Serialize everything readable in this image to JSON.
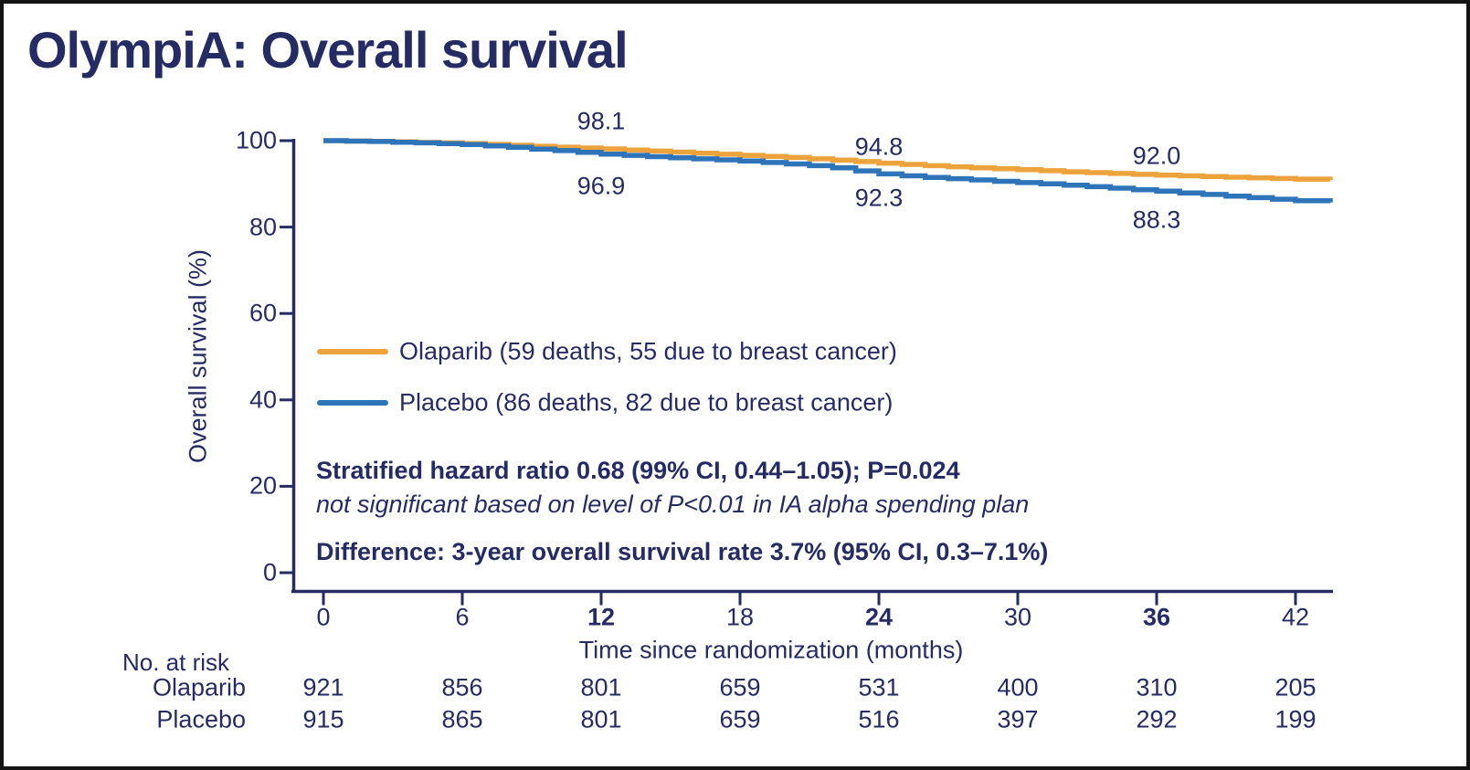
{
  "title": "OlympiA: Overall survival",
  "colors": {
    "navy": "#252B63",
    "olaparib_orange": "#EDA33C",
    "placebo_blue": "#2E74B9",
    "frame_border": "#141414",
    "background": "#FFFFFF"
  },
  "chart_data": {
    "type": "line",
    "subtype": "kaplan-meier-step",
    "title": "OlympiA: Overall survival",
    "xlabel": "Time since randomization (months)",
    "ylabel": "Overall survival (%)",
    "xlim": [
      0,
      43.5
    ],
    "ylim": [
      0,
      100
    ],
    "grid": false,
    "legend_position": "inside-middle-left",
    "x_ticks": [
      {
        "label": "0",
        "month": 0,
        "bold": false
      },
      {
        "label": "6",
        "month": 6,
        "bold": false
      },
      {
        "label": "12",
        "month": 12,
        "bold": true
      },
      {
        "label": "18",
        "month": 18,
        "bold": false
      },
      {
        "label": "24",
        "month": 24,
        "bold": true
      },
      {
        "label": "30",
        "month": 30,
        "bold": false
      },
      {
        "label": "36",
        "month": 36,
        "bold": true
      },
      {
        "label": "42",
        "month": 42,
        "bold": false
      }
    ],
    "y_ticks": [
      {
        "label": "100",
        "value": 100
      },
      {
        "label": "80",
        "value": 80
      },
      {
        "label": "60",
        "value": 60
      },
      {
        "label": "40",
        "value": 40
      },
      {
        "label": "20",
        "value": 20
      },
      {
        "label": "0",
        "value": 0
      }
    ],
    "series": [
      {
        "name": "Olaparib",
        "legend_label": "Olaparib (59 deaths, 55 due to breast cancer)",
        "color": "#EDA33C",
        "key_values": {
          "12": 98.1,
          "24": 94.8,
          "36": 92.0
        },
        "points": [
          [
            0,
            100
          ],
          [
            1,
            99.9
          ],
          [
            2,
            99.85
          ],
          [
            3,
            99.75
          ],
          [
            4,
            99.6
          ],
          [
            5,
            99.5
          ],
          [
            6,
            99.35
          ],
          [
            7,
            99.15
          ],
          [
            8,
            98.95
          ],
          [
            9,
            98.7
          ],
          [
            10,
            98.5
          ],
          [
            11,
            98.3
          ],
          [
            12,
            98.1
          ],
          [
            13,
            97.85
          ],
          [
            14,
            97.6
          ],
          [
            15,
            97.35
          ],
          [
            16,
            97.1
          ],
          [
            17,
            96.85
          ],
          [
            18,
            96.6
          ],
          [
            19,
            96.35
          ],
          [
            20,
            96.1
          ],
          [
            21,
            95.8
          ],
          [
            22,
            95.5
          ],
          [
            23,
            95.15
          ],
          [
            24,
            94.8
          ],
          [
            25,
            94.5
          ],
          [
            26,
            94.2
          ],
          [
            27,
            93.95
          ],
          [
            28,
            93.7
          ],
          [
            29,
            93.5
          ],
          [
            30,
            93.3
          ],
          [
            31,
            93.05
          ],
          [
            32,
            92.8
          ],
          [
            33,
            92.6
          ],
          [
            34,
            92.4
          ],
          [
            35,
            92.2
          ],
          [
            36,
            92.0
          ],
          [
            37,
            91.85
          ],
          [
            38,
            91.7
          ],
          [
            39,
            91.55
          ],
          [
            40,
            91.4
          ],
          [
            41,
            91.25
          ],
          [
            42,
            91.1
          ],
          [
            43.5,
            90.9
          ]
        ]
      },
      {
        "name": "Placebo",
        "legend_label": "Placebo (86 deaths, 82 due to breast cancer)",
        "color": "#2E74B9",
        "key_values": {
          "12": 96.9,
          "24": 92.3,
          "36": 88.3
        },
        "points": [
          [
            0,
            100
          ],
          [
            1,
            99.9
          ],
          [
            2,
            99.8
          ],
          [
            3,
            99.65
          ],
          [
            4,
            99.5
          ],
          [
            5,
            99.3
          ],
          [
            6,
            99.1
          ],
          [
            7,
            98.8
          ],
          [
            8,
            98.45
          ],
          [
            9,
            98.05
          ],
          [
            10,
            97.7
          ],
          [
            11,
            97.3
          ],
          [
            12,
            96.9
          ],
          [
            13,
            96.6
          ],
          [
            14,
            96.3
          ],
          [
            15,
            96.05
          ],
          [
            16,
            95.8
          ],
          [
            17,
            95.55
          ],
          [
            18,
            95.3
          ],
          [
            19,
            94.95
          ],
          [
            20,
            94.6
          ],
          [
            21,
            94.2
          ],
          [
            22,
            93.7
          ],
          [
            23,
            93.0
          ],
          [
            24,
            92.3
          ],
          [
            25,
            91.85
          ],
          [
            26,
            91.5
          ],
          [
            27,
            91.2
          ],
          [
            28,
            90.9
          ],
          [
            29,
            90.6
          ],
          [
            30,
            90.3
          ],
          [
            31,
            90.0
          ],
          [
            32,
            89.7
          ],
          [
            33,
            89.35
          ],
          [
            34,
            89.0
          ],
          [
            35,
            88.65
          ],
          [
            36,
            88.3
          ],
          [
            37,
            87.9
          ],
          [
            38,
            87.55
          ],
          [
            39,
            87.15
          ],
          [
            40,
            86.8
          ],
          [
            41,
            86.45
          ],
          [
            42,
            86.1
          ],
          [
            43.5,
            85.7
          ]
        ]
      }
    ],
    "annotations": [
      {
        "series": "Olaparib",
        "month": 12,
        "value": 98.1,
        "label": "98.1",
        "dy": -30
      },
      {
        "series": "Placebo",
        "month": 12,
        "value": 96.9,
        "label": "96.9",
        "dy": 35
      },
      {
        "series": "Olaparib",
        "month": 24,
        "value": 94.8,
        "label": "94.8",
        "dy": -18
      },
      {
        "series": "Placebo",
        "month": 24,
        "value": 92.3,
        "label": "92.3",
        "dy": 27
      },
      {
        "series": "Olaparib",
        "month": 36,
        "value": 92.0,
        "label": "92.0",
        "dy": -21
      },
      {
        "series": "Placebo",
        "month": 36,
        "value": 88.3,
        "label": "88.3",
        "dy": 32
      }
    ]
  },
  "stats": {
    "line1": "Stratified hazard ratio 0.68 (99% CI, 0.44–1.05); P=0.024",
    "line2": "not significant based on level of P<0.01 in IA alpha spending plan",
    "line3": "Difference: 3-year overall survival rate 3.7% (95% CI, 0.3–7.1%)"
  },
  "risk_table": {
    "heading": "No. at risk",
    "months": [
      0,
      6,
      12,
      18,
      24,
      30,
      36,
      42
    ],
    "rows": [
      {
        "label": "Olaparib",
        "values": [
          921,
          856,
          801,
          659,
          531,
          400,
          310,
          205
        ]
      },
      {
        "label": "Placebo",
        "values": [
          915,
          865,
          801,
          659,
          516,
          397,
          292,
          199
        ]
      }
    ]
  }
}
